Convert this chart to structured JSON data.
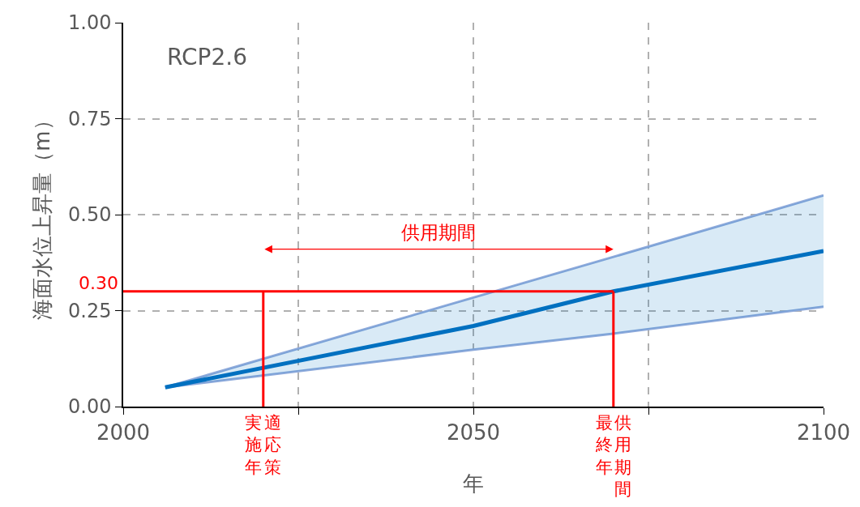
{
  "chart_data": {
    "type": "line",
    "xlabel": "年",
    "ylabel": "海面水位上昇量（m）",
    "x": [
      2006,
      2050,
      2070,
      2100
    ],
    "series": [
      {
        "color": "#8eaadb",
        "values": [
          0.05,
          0.148,
          0.19,
          0.26
        ]
      },
      {
        "color": "#8eaadb",
        "values": [
          0.05,
          0.284,
          0.39,
          0.55
        ]
      },
      {
        "color": "#0070c0",
        "values": [
          0.05,
          0.21,
          0.3,
          0.405
        ],
        "lower": [
          0.05,
          0.148,
          0.19,
          0.26
        ],
        "upper": [
          0.05,
          0.284,
          0.39,
          0.55
        ]
      }
    ],
    "xlim": [
      2000,
      2100
    ],
    "xticks": [
      2000,
      {
        "value": 2025,
        "label": null
      },
      2050,
      {
        "value": 2075,
        "label": null
      },
      2100
    ],
    "ylim": [
      0,
      1
    ],
    "yticks": [
      {
        "value": 0,
        "label": "0.00"
      },
      {
        "value": 0.25,
        "label": "0.25"
      },
      {
        "value": 0.5,
        "label": "0.50"
      },
      {
        "value": 0.75,
        "label": "0.75"
      },
      {
        "value": 1,
        "label": "1.00"
      }
    ],
    "grid": true,
    "line_style": "solid",
    "marker": "none",
    "ref_lines": [
      {
        "axis": "y",
        "value": 0.3,
        "label": "0.30",
        "color": "#ff0000"
      },
      {
        "axis": "x",
        "value": 2020,
        "label": null,
        "color": "#ff0000"
      },
      {
        "axis": "x",
        "value": 2070,
        "label": null,
        "color": "#ff0000"
      }
    ],
    "annotations": [
      "RCP2.6",
      "供用期間",
      "適応策",
      "実施年",
      "供用期間",
      "最終年"
    ]
  }
}
